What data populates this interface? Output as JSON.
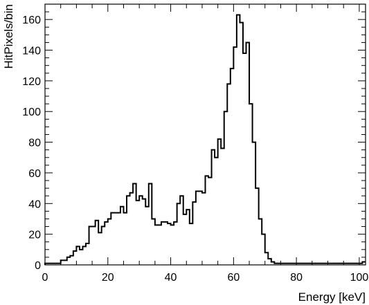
{
  "chart_data": {
    "type": "histogram",
    "xlabel": "Energy [keV]",
    "ylabel": "HitPixels/bin",
    "xlim": [
      0,
      102
    ],
    "ylim": [
      0,
      170
    ],
    "x_ticks": [
      0,
      20,
      40,
      60,
      80,
      100
    ],
    "y_ticks": [
      0,
      20,
      40,
      60,
      80,
      100,
      120,
      140,
      160
    ],
    "bin_width": 1,
    "bin_start": 0,
    "counts": [
      1,
      1,
      1,
      1,
      1,
      3,
      3,
      5,
      6,
      9,
      12,
      10,
      12,
      14,
      25,
      25,
      29,
      21,
      25,
      28,
      30,
      34,
      34,
      34,
      38,
      34,
      45,
      47,
      53,
      42,
      45,
      43,
      38,
      53,
      30,
      26,
      26,
      28,
      28,
      27,
      26,
      28,
      40,
      45,
      33,
      36,
      27,
      41,
      48,
      48,
      47,
      58,
      57,
      75,
      70,
      82,
      76,
      100,
      118,
      128,
      142,
      163,
      158,
      138,
      145,
      105,
      80,
      50,
      30,
      20,
      8,
      4,
      2,
      1,
      1,
      1,
      1,
      1,
      1,
      1,
      1,
      1,
      1,
      1,
      1,
      1,
      1,
      1,
      1,
      1,
      1,
      1,
      1,
      1,
      1,
      1,
      1,
      1,
      1,
      1,
      1,
      2
    ]
  }
}
